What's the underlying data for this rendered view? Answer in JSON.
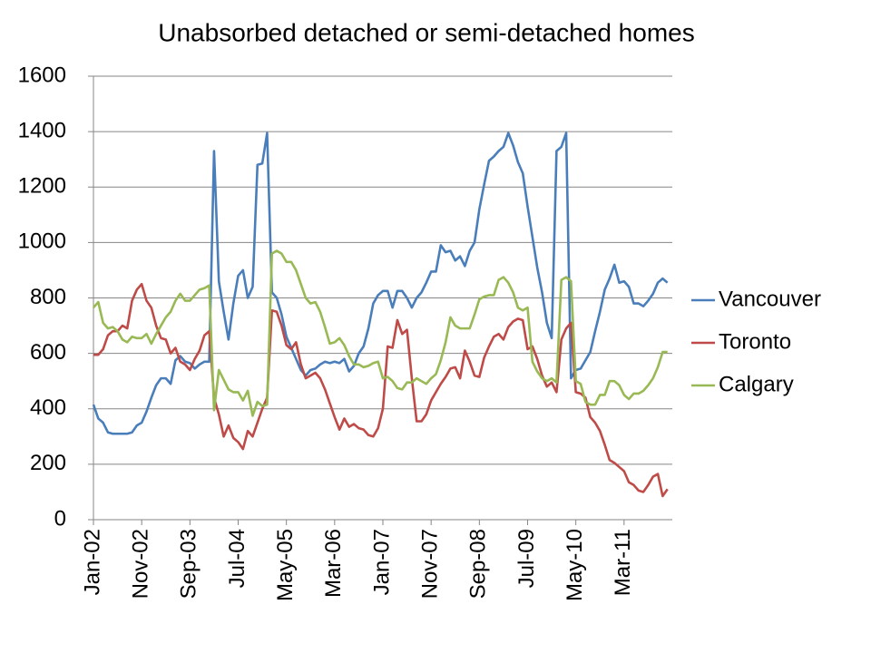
{
  "chart_data": {
    "type": "line",
    "title": "Unabsorbed detached or semi-detached homes",
    "categories": [
      "Jan-02",
      null,
      null,
      null,
      null,
      null,
      null,
      null,
      null,
      null,
      "Nov-02",
      null,
      null,
      null,
      null,
      null,
      null,
      null,
      null,
      null,
      "Sep-03",
      null,
      null,
      null,
      null,
      null,
      null,
      null,
      null,
      null,
      "Jul-04",
      null,
      null,
      null,
      null,
      null,
      null,
      null,
      null,
      null,
      "May-05",
      null,
      null,
      null,
      null,
      null,
      null,
      null,
      null,
      null,
      "Mar-06",
      null,
      null,
      null,
      null,
      null,
      null,
      null,
      null,
      null,
      "Jan-07",
      null,
      null,
      null,
      null,
      null,
      null,
      null,
      null,
      null,
      "Nov-07",
      null,
      null,
      null,
      null,
      null,
      null,
      null,
      null,
      null,
      "Sep-08",
      null,
      null,
      null,
      null,
      null,
      null,
      null,
      null,
      null,
      "Jul-09",
      null,
      null,
      null,
      null,
      null,
      null,
      null,
      null,
      null,
      "May-10",
      null,
      null,
      null,
      null,
      null,
      null,
      null,
      null,
      null,
      "Mar-11",
      null,
      null,
      null,
      null,
      null,
      null,
      null,
      null,
      null
    ],
    "series": [
      {
        "name": "Vancouver",
        "color": "#4a7ebb",
        "values": [
          415,
          365,
          350,
          315,
          310,
          310,
          310,
          310,
          315,
          340,
          350,
          390,
          440,
          485,
          510,
          510,
          490,
          575,
          590,
          570,
          565,
          545,
          560,
          570,
          570,
          1330,
          860,
          750,
          650,
          780,
          880,
          900,
          800,
          840,
          1280,
          1285,
          1395,
          820,
          800,
          740,
          660,
          620,
          580,
          540,
          520,
          540,
          545,
          560,
          570,
          565,
          570,
          565,
          580,
          535,
          555,
          600,
          625,
          690,
          780,
          810,
          825,
          825,
          765,
          825,
          825,
          800,
          765,
          800,
          820,
          855,
          895,
          895,
          990,
          965,
          970,
          935,
          950,
          915,
          970,
          1000,
          1120,
          1210,
          1295,
          1310,
          1330,
          1345,
          1395,
          1350,
          1290,
          1250,
          1130,
          1020,
          910,
          820,
          710,
          655,
          1330,
          1345,
          1395,
          510,
          540,
          545,
          575,
          605,
          680,
          750,
          830,
          870,
          920,
          855,
          860,
          840,
          780,
          780,
          770,
          790,
          815,
          855,
          870,
          855
        ]
      },
      {
        "name": "Toronto",
        "color": "#be4b48",
        "values": [
          595,
          595,
          615,
          665,
          680,
          680,
          700,
          690,
          790,
          830,
          850,
          790,
          765,
          700,
          655,
          650,
          600,
          620,
          570,
          560,
          540,
          580,
          610,
          665,
          680,
          440,
          380,
          300,
          340,
          295,
          280,
          255,
          320,
          300,
          350,
          400,
          440,
          755,
          750,
          700,
          630,
          615,
          640,
          560,
          510,
          520,
          530,
          510,
          470,
          420,
          370,
          325,
          365,
          335,
          345,
          330,
          325,
          305,
          300,
          330,
          400,
          625,
          620,
          720,
          670,
          685,
          510,
          355,
          355,
          380,
          430,
          460,
          490,
          515,
          545,
          550,
          510,
          610,
          570,
          520,
          515,
          585,
          625,
          660,
          670,
          650,
          695,
          715,
          725,
          720,
          615,
          625,
          580,
          520,
          480,
          495,
          460,
          650,
          690,
          710,
          460,
          455,
          440,
          370,
          350,
          320,
          270,
          215,
          205,
          190,
          175,
          135,
          125,
          105,
          100,
          125,
          155,
          165,
          85,
          110
        ]
      },
      {
        "name": "Calgary",
        "color": "#98b954",
        "values": [
          765,
          785,
          710,
          690,
          695,
          680,
          650,
          640,
          660,
          655,
          655,
          670,
          635,
          670,
          700,
          730,
          750,
          790,
          815,
          790,
          790,
          810,
          830,
          835,
          845,
          395,
          540,
          505,
          470,
          460,
          460,
          430,
          465,
          375,
          425,
          410,
          415,
          960,
          970,
          960,
          930,
          930,
          900,
          850,
          800,
          780,
          785,
          750,
          695,
          635,
          640,
          655,
          630,
          590,
          560,
          560,
          550,
          555,
          565,
          570,
          510,
          515,
          500,
          475,
          470,
          495,
          495,
          510,
          500,
          490,
          510,
          525,
          575,
          640,
          730,
          700,
          690,
          690,
          690,
          740,
          795,
          805,
          810,
          810,
          865,
          875,
          855,
          820,
          765,
          755,
          765,
          570,
          535,
          510,
          500,
          510,
          495,
          865,
          875,
          860,
          500,
          490,
          425,
          415,
          415,
          450,
          450,
          500,
          500,
          485,
          450,
          435,
          455,
          455,
          465,
          485,
          510,
          550,
          605,
          605
        ]
      }
    ],
    "ylim": [
      0,
      1600
    ],
    "yticks": [
      0,
      200,
      400,
      600,
      800,
      1000,
      1200,
      1400,
      1600
    ],
    "grid": true,
    "legend": "right"
  }
}
